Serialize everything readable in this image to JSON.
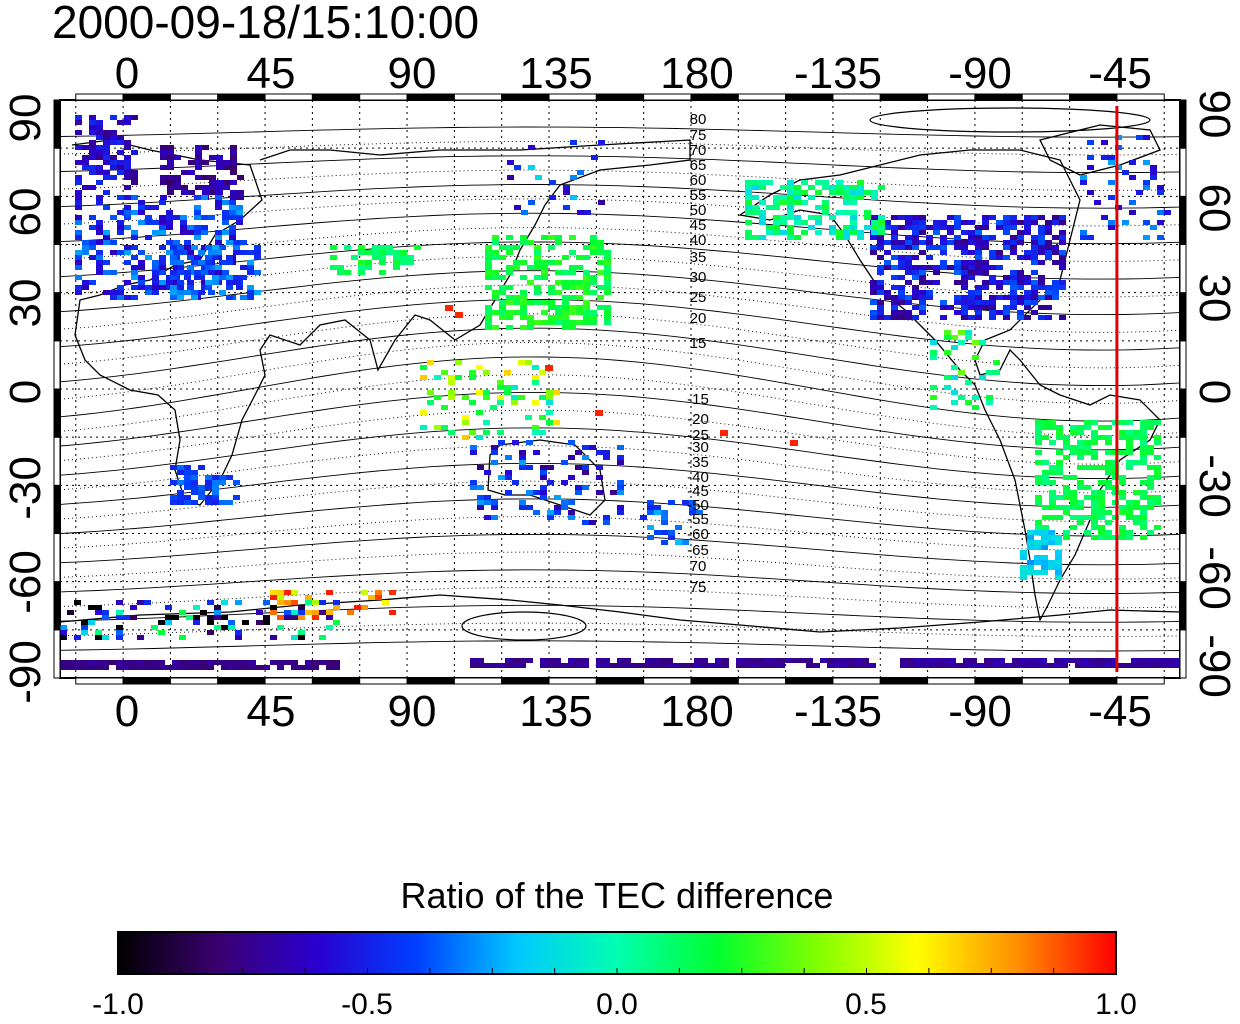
{
  "title": "2000-09-18/15:10:00",
  "map": {
    "lon_ticks_top": [
      "0",
      "45",
      "90",
      "135",
      "180",
      "-135",
      "-90",
      "-45"
    ],
    "lon_ticks_bottom": [
      "0",
      "45",
      "90",
      "135",
      "180",
      "-135",
      "-90",
      "-45"
    ],
    "lat_ticks_left": [
      "90",
      "60",
      "30",
      "0",
      "-30",
      "-60",
      "-90"
    ],
    "lat_ticks_right": [
      "90",
      "60",
      "30",
      "0",
      "-30",
      "-60",
      "-90"
    ],
    "lon_range": [
      -20,
      335
    ],
    "lat_range": [
      -90,
      90
    ],
    "grid": "dotted",
    "marker_line_longitude": -45,
    "marker_line_color": "#e00000",
    "contour_labels_north": [
      "80",
      "75",
      "70",
      "65",
      "60",
      "55",
      "50",
      "45",
      "40",
      "35",
      "30",
      "25",
      "20",
      "15"
    ],
    "contour_labels_south": [
      "-15",
      "-20",
      "-25",
      "-30",
      "-35",
      "-40",
      "-45",
      "-50",
      "-55",
      "-60",
      "-65",
      "70",
      "75"
    ]
  },
  "colorbar": {
    "label": "Ratio of the TEC difference",
    "ticks": [
      "-1.0",
      "-0.5",
      "0.0",
      "0.5",
      "1.0"
    ],
    "range": [
      -1.0,
      1.0
    ],
    "colors": [
      "#000000",
      "#3a0070",
      "#2a00d0",
      "#0040ff",
      "#00c8ff",
      "#00ffb0",
      "#00ff30",
      "#80ff00",
      "#ffff00",
      "#ff9000",
      "#ff0000"
    ]
  }
}
